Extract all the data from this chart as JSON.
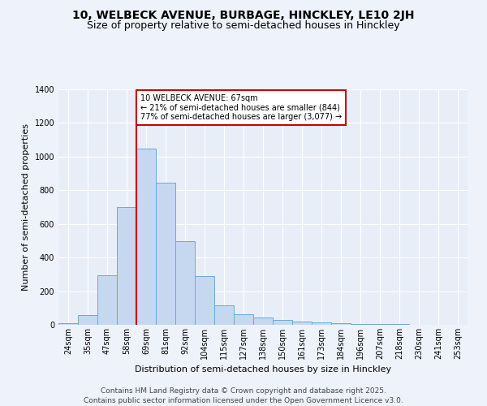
{
  "title": "10, WELBECK AVENUE, BURBAGE, HINCKLEY, LE10 2JH",
  "subtitle": "Size of property relative to semi-detached houses in Hinckley",
  "xlabel": "Distribution of semi-detached houses by size in Hinckley",
  "ylabel": "Number of semi-detached properties",
  "categories": [
    "24sqm",
    "35sqm",
    "47sqm",
    "58sqm",
    "69sqm",
    "81sqm",
    "92sqm",
    "104sqm",
    "115sqm",
    "127sqm",
    "138sqm",
    "150sqm",
    "161sqm",
    "173sqm",
    "184sqm",
    "196sqm",
    "207sqm",
    "218sqm",
    "230sqm",
    "241sqm",
    "253sqm"
  ],
  "values": [
    10,
    60,
    295,
    700,
    1050,
    845,
    495,
    290,
    115,
    65,
    45,
    30,
    20,
    15,
    8,
    5,
    5,
    3,
    2,
    1,
    1
  ],
  "bar_color": "#c5d8f0",
  "bar_edge_color": "#6aaad4",
  "red_line_index": 4,
  "annotation_title": "10 WELBECK AVENUE: 67sqm",
  "annotation_line1": "← 21% of semi-detached houses are smaller (844)",
  "annotation_line2": "77% of semi-detached houses are larger (3,077) →",
  "annotation_box_color": "#ffffff",
  "annotation_box_edge_color": "#cc0000",
  "red_line_color": "#cc0000",
  "background_color": "#edf2fb",
  "plot_background_color": "#e8eef8",
  "grid_color": "#ffffff",
  "ylim": [
    0,
    1400
  ],
  "yticks": [
    0,
    200,
    400,
    600,
    800,
    1000,
    1200,
    1400
  ],
  "footer_line1": "Contains HM Land Registry data © Crown copyright and database right 2025.",
  "footer_line2": "Contains public sector information licensed under the Open Government Licence v3.0.",
  "title_fontsize": 10,
  "subtitle_fontsize": 9,
  "axis_label_fontsize": 8,
  "tick_fontsize": 7,
  "annotation_fontsize": 7,
  "footer_fontsize": 6.5
}
